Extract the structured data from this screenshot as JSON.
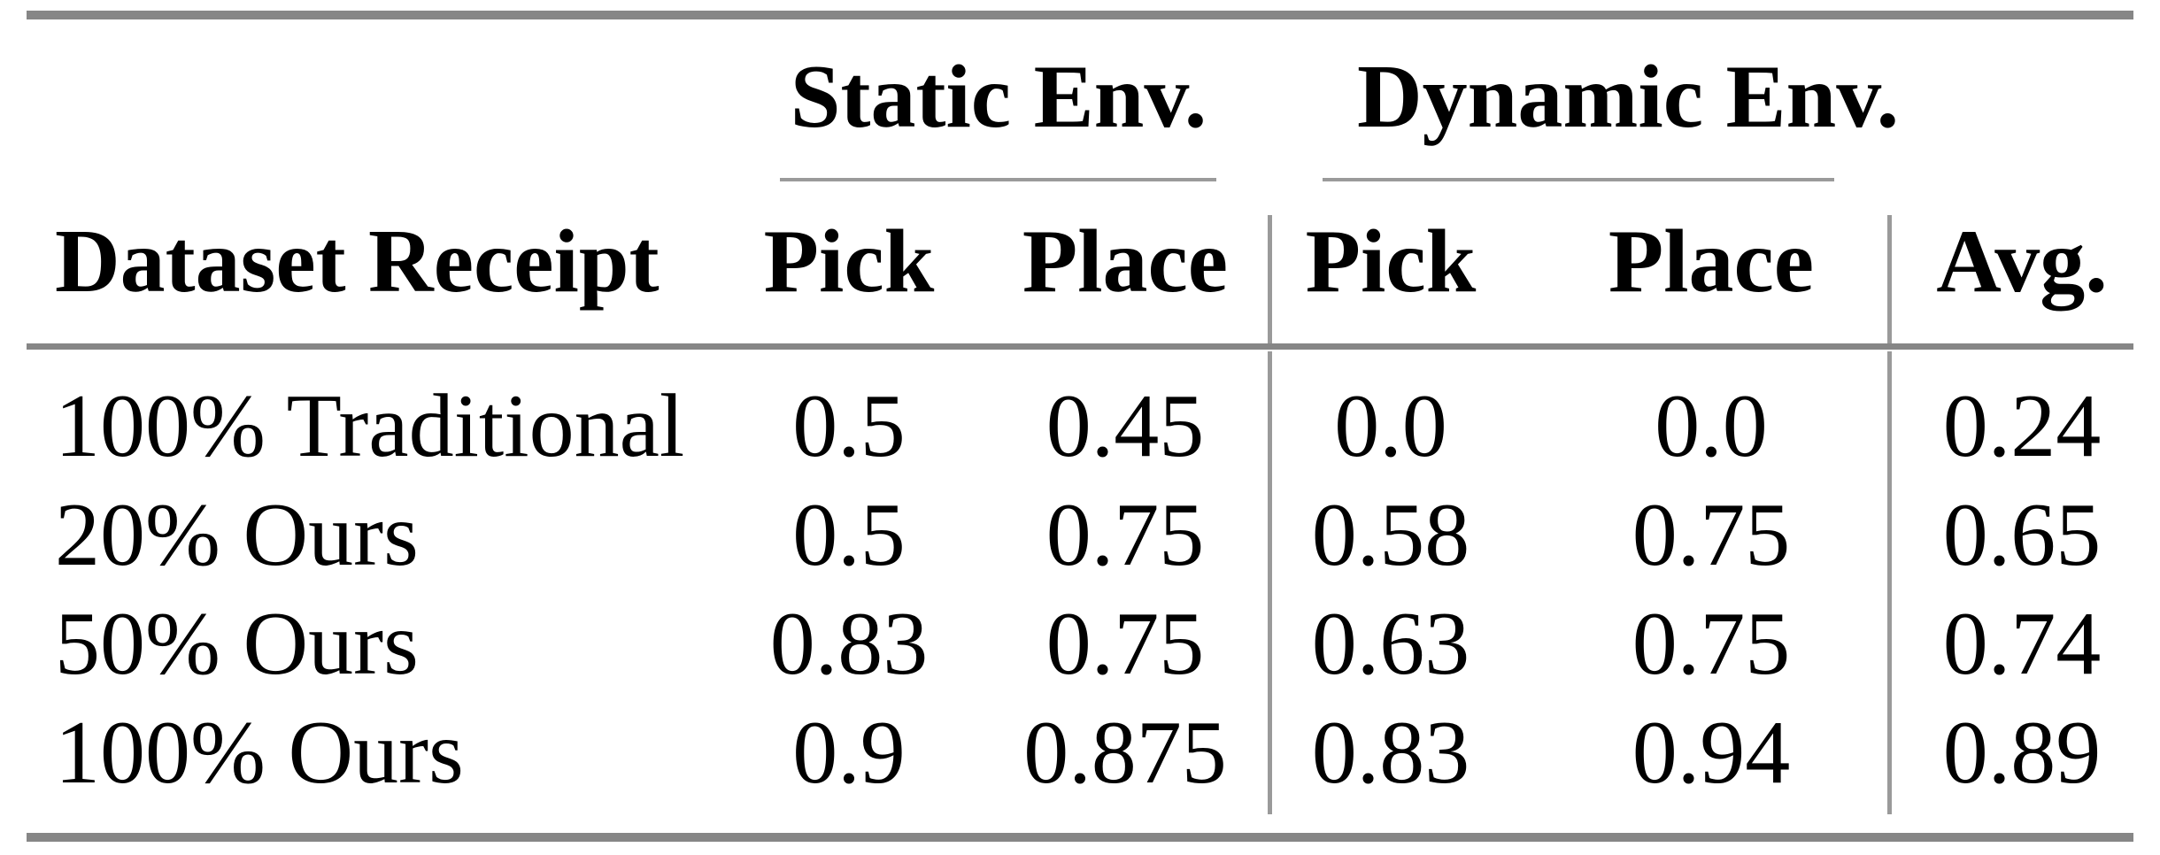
{
  "table": {
    "col_groups": [
      {
        "label": "Static Env."
      },
      {
        "label": "Dynamic Env."
      }
    ],
    "columns": {
      "row_header": "Dataset Receipt",
      "static_pick": "Pick",
      "static_place": "Place",
      "dynamic_pick": "Pick",
      "dynamic_place": "Place",
      "avg": "Avg."
    },
    "rows": [
      {
        "label": "100% Traditional",
        "static_pick": "0.5",
        "static_place": "0.45",
        "dynamic_pick": "0.0",
        "dynamic_place": "0.0",
        "avg": "0.24"
      },
      {
        "label": "20% Ours",
        "static_pick": "0.5",
        "static_place": "0.75",
        "dynamic_pick": "0.58",
        "dynamic_place": "0.75",
        "avg": "0.65"
      },
      {
        "label": "50% Ours",
        "static_pick": "0.83",
        "static_place": "0.75",
        "dynamic_pick": "0.63",
        "dynamic_place": "0.75",
        "avg": "0.74"
      },
      {
        "label": "100% Ours",
        "static_pick": "0.9",
        "static_place": "0.875",
        "dynamic_pick": "0.83",
        "dynamic_place": "0.94",
        "avg": "0.89"
      }
    ],
    "colors": {
      "thick_rule": "#868686",
      "thin_rule": "#9a9a9a",
      "text": "#000000",
      "background": "#ffffff"
    }
  }
}
